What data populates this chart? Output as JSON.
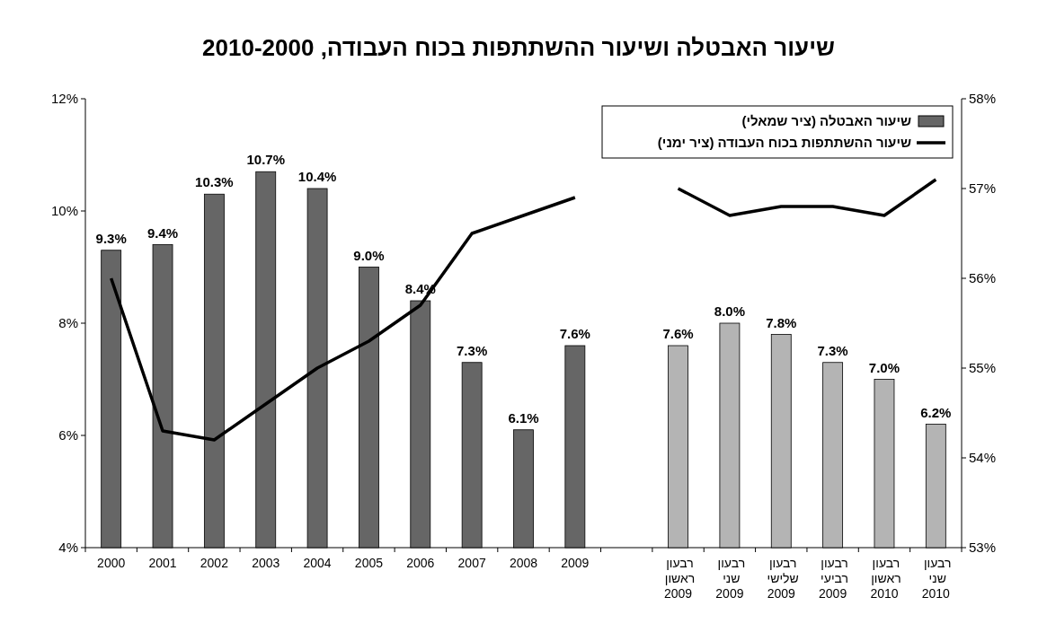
{
  "chart_data": {
    "type": "bar",
    "title": "שיעור האבטלה ושיעור ההשתתפות בכוח העבודה, 2010-2000",
    "categories": [
      "2000",
      "2001",
      "2002",
      "2003",
      "2004",
      "2005",
      "2006",
      "2007",
      "2008",
      "2009",
      null,
      "רבעון ראשון 2009",
      "רבעון שני 2009",
      "רבעון שלישי 2009",
      "רבעון רביעי 2009",
      "רבעון ראשון 2010",
      "רבעון שני 2010"
    ],
    "series": [
      {
        "name": "שיעור האבטלה (ציר שמאלי)",
        "color": "#666666",
        "colors": [
          "#666666",
          "#666666",
          "#666666",
          "#666666",
          "#666666",
          "#666666",
          "#666666",
          "#666666",
          "#666666",
          "#666666",
          null,
          "#b4b4b4",
          "#b4b4b4",
          "#b4b4b4",
          "#b4b4b4",
          "#b4b4b4",
          "#b4b4b4"
        ],
        "values": [
          9.3,
          9.4,
          10.3,
          10.7,
          10.4,
          9.0,
          8.4,
          7.3,
          6.1,
          7.6,
          null,
          7.6,
          8.0,
          7.8,
          7.3,
          7.0,
          6.2
        ],
        "value_labels": [
          "9.3%",
          "9.4%",
          "10.3%",
          "10.7%",
          "10.4%",
          "9.0%",
          "8.4%",
          "7.3%",
          "6.1%",
          "7.6%",
          null,
          "7.6%",
          "8.0%",
          "7.8%",
          "7.3%",
          "7.0%",
          "6.2%"
        ]
      },
      {
        "name": "שיעור ההשתתפות בכוח העבודה (ציר ימני)",
        "type": "line",
        "axis": "y2",
        "color": "#000000",
        "values": [
          56.0,
          54.3,
          54.2,
          54.6,
          55.0,
          55.3,
          55.7,
          56.5,
          56.7,
          56.9,
          null,
          57.0,
          56.7,
          56.8,
          56.8,
          56.7,
          57.1
        ]
      }
    ],
    "ylim": [
      4,
      12
    ],
    "yticks": [
      {
        "value": 4,
        "label": "4%"
      },
      {
        "value": 6,
        "label": "6%"
      },
      {
        "value": 8,
        "label": "8%"
      },
      {
        "value": 10,
        "label": "10%"
      },
      {
        "value": 12,
        "label": "12%"
      }
    ],
    "y2lim": [
      53,
      58
    ],
    "y2ticks": [
      {
        "value": 53,
        "label": "53%"
      },
      {
        "value": 54,
        "label": "54%"
      },
      {
        "value": 55,
        "label": "55%"
      },
      {
        "value": 56,
        "label": "56%"
      },
      {
        "value": 57,
        "label": "57%"
      },
      {
        "value": 58,
        "label": "58%"
      }
    ],
    "legend": "top right"
  }
}
